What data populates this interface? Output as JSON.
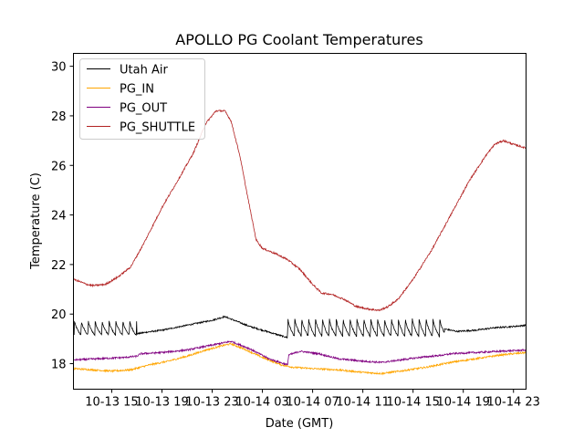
{
  "chart_data": {
    "type": "line",
    "title": "APOLLO PG Coolant Temperatures",
    "xlabel": "Date (GMT)",
    "ylabel": "Temperature (C)",
    "x_units": "hours since 10-13 00:00 GMT",
    "xlim": [
      11.95,
      48.0
    ],
    "ylim": [
      16.97,
      30.52
    ],
    "grid": false,
    "legend_position": "top-left",
    "xticks": [
      {
        "value": 15,
        "label": "10-13 15"
      },
      {
        "value": 19,
        "label": "10-13 19"
      },
      {
        "value": 23,
        "label": "10-13 23"
      },
      {
        "value": 27,
        "label": "10-14 03"
      },
      {
        "value": 31,
        "label": "10-14 07"
      },
      {
        "value": 35,
        "label": "10-14 11"
      },
      {
        "value": 39,
        "label": "10-14 15"
      },
      {
        "value": 43,
        "label": "10-14 19"
      },
      {
        "value": 47,
        "label": "10-14 23"
      }
    ],
    "yticks": [
      {
        "value": 18,
        "label": "18"
      },
      {
        "value": 20,
        "label": "20"
      },
      {
        "value": 22,
        "label": "22"
      },
      {
        "value": 24,
        "label": "24"
      },
      {
        "value": 26,
        "label": "26"
      },
      {
        "value": 28,
        "label": "28"
      },
      {
        "value": 30,
        "label": "30"
      }
    ],
    "series": [
      {
        "name": "Utah Air",
        "color": "#000000",
        "sawtooth": [
          {
            "from": 12.0,
            "to": 17.0,
            "period": 0.55,
            "base": 19.15,
            "peak": 19.75
          },
          {
            "from": 29.0,
            "to": 41.5,
            "period": 0.55,
            "base": 19.1,
            "peak": 19.85
          }
        ],
        "points": [
          [
            12.0,
            19.2
          ],
          [
            17.0,
            19.2
          ],
          [
            17.5,
            19.25
          ],
          [
            19,
            19.35
          ],
          [
            21,
            19.55
          ],
          [
            23,
            19.75
          ],
          [
            24,
            19.9
          ],
          [
            25,
            19.7
          ],
          [
            26,
            19.5
          ],
          [
            27,
            19.35
          ],
          [
            28,
            19.2
          ],
          [
            29,
            19.05
          ],
          [
            41.5,
            19.4
          ],
          [
            42.5,
            19.3
          ],
          [
            44,
            19.35
          ],
          [
            45.5,
            19.45
          ],
          [
            47,
            19.5
          ],
          [
            48,
            19.55
          ]
        ]
      },
      {
        "name": "PG_IN",
        "color": "#ffa500",
        "points": [
          [
            12,
            17.8
          ],
          [
            13.5,
            17.75
          ],
          [
            15,
            17.7
          ],
          [
            16.5,
            17.75
          ],
          [
            18,
            17.95
          ],
          [
            19.5,
            18.1
          ],
          [
            21,
            18.3
          ],
          [
            22.5,
            18.55
          ],
          [
            24,
            18.75
          ],
          [
            24.5,
            18.8
          ],
          [
            25.5,
            18.6
          ],
          [
            27,
            18.25
          ],
          [
            28.5,
            17.95
          ],
          [
            29.5,
            17.85
          ],
          [
            31,
            17.8
          ],
          [
            33,
            17.75
          ],
          [
            35,
            17.65
          ],
          [
            36.5,
            17.6
          ],
          [
            38,
            17.7
          ],
          [
            40,
            17.85
          ],
          [
            42,
            18.05
          ],
          [
            44,
            18.2
          ],
          [
            46,
            18.35
          ],
          [
            48,
            18.45
          ]
        ]
      },
      {
        "name": "PG_OUT",
        "color": "#800080",
        "points": [
          [
            12,
            18.15
          ],
          [
            14,
            18.2
          ],
          [
            16,
            18.25
          ],
          [
            17,
            18.3
          ],
          [
            17.3,
            18.4
          ],
          [
            19,
            18.45
          ],
          [
            21,
            18.55
          ],
          [
            22.5,
            18.7
          ],
          [
            24,
            18.85
          ],
          [
            24.5,
            18.9
          ],
          [
            26,
            18.6
          ],
          [
            27.5,
            18.2
          ],
          [
            29,
            17.95
          ],
          [
            29.1,
            18.35
          ],
          [
            30,
            18.5
          ],
          [
            31.5,
            18.4
          ],
          [
            33,
            18.2
          ],
          [
            35,
            18.1
          ],
          [
            36.5,
            18.05
          ],
          [
            38,
            18.15
          ],
          [
            39.5,
            18.25
          ],
          [
            41.5,
            18.35
          ],
          [
            42,
            18.4
          ],
          [
            44,
            18.45
          ],
          [
            46,
            18.5
          ],
          [
            48,
            18.55
          ]
        ]
      },
      {
        "name": "PG_SHUTTLE",
        "color": "#b22222",
        "points": [
          [
            12,
            21.4
          ],
          [
            13,
            21.2
          ],
          [
            13.5,
            21.15
          ],
          [
            14.5,
            21.2
          ],
          [
            15.5,
            21.5
          ],
          [
            16.5,
            21.9
          ],
          [
            17.5,
            22.8
          ],
          [
            19,
            24.3
          ],
          [
            20.5,
            25.6
          ],
          [
            21.5,
            26.5
          ],
          [
            22.5,
            27.7
          ],
          [
            23.3,
            28.2
          ],
          [
            24,
            28.2
          ],
          [
            24.5,
            27.8
          ],
          [
            25.2,
            26.4
          ],
          [
            25.8,
            24.8
          ],
          [
            26.5,
            23.0
          ],
          [
            27,
            22.65
          ],
          [
            28,
            22.45
          ],
          [
            29,
            22.2
          ],
          [
            30,
            21.8
          ],
          [
            31,
            21.2
          ],
          [
            31.7,
            20.85
          ],
          [
            32.5,
            20.8
          ],
          [
            33.5,
            20.6
          ],
          [
            34.5,
            20.3
          ],
          [
            35.5,
            20.2
          ],
          [
            36.3,
            20.15
          ],
          [
            37,
            20.3
          ],
          [
            37.8,
            20.6
          ],
          [
            39,
            21.4
          ],
          [
            40.5,
            22.6
          ],
          [
            42,
            24.0
          ],
          [
            43.5,
            25.4
          ],
          [
            44.8,
            26.4
          ],
          [
            45.5,
            26.85
          ],
          [
            46.2,
            27.0
          ],
          [
            47,
            26.85
          ],
          [
            48,
            26.7
          ]
        ]
      }
    ]
  }
}
